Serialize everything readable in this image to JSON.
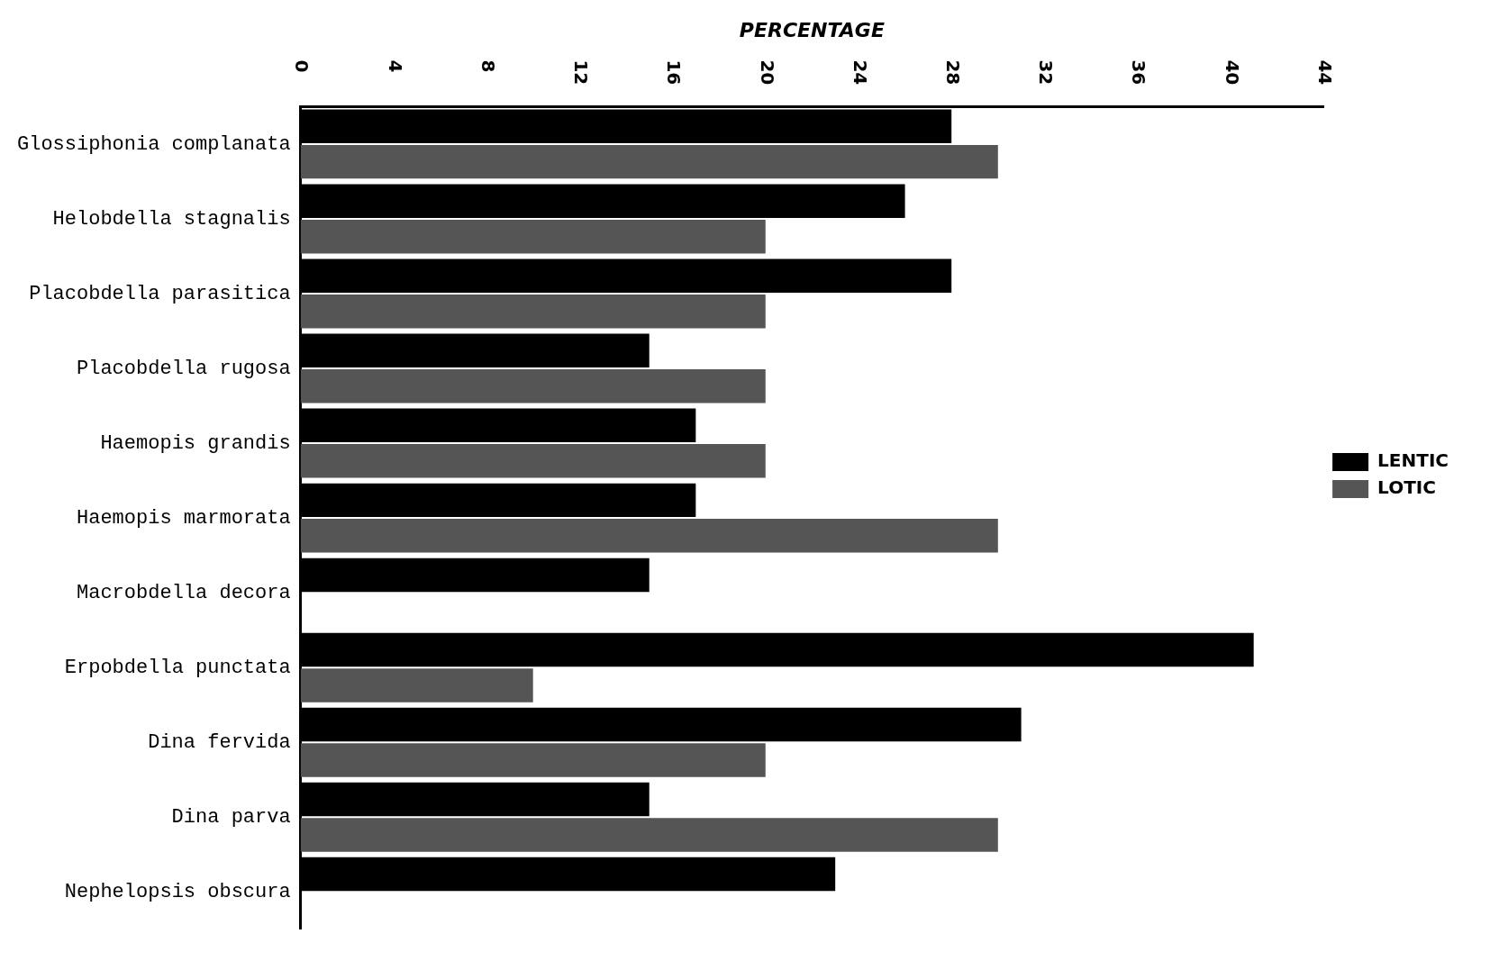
{
  "chart_data": {
    "type": "bar",
    "orientation": "horizontal",
    "xlabel": "PERCENTAGE",
    "categories": [
      "Glossiphonia complanata",
      "Helobdella stagnalis",
      "Placobdella parasitica",
      "Placobdella rugosa",
      "Haemopis grandis",
      "Haemopis marmorata",
      "Macrobdella decora",
      "Erpobdella punctata",
      "Dina fervida",
      "Dina parva",
      "Nephelopsis obscura"
    ],
    "series": [
      {
        "name": "LENTIC",
        "color": "#000000",
        "values": [
          28,
          26,
          28,
          15,
          17,
          17,
          15,
          41,
          31,
          15,
          23
        ]
      },
      {
        "name": "LOTIC",
        "color": "#555555",
        "values": [
          30,
          20,
          20,
          20,
          20,
          30,
          null,
          10,
          20,
          30,
          null
        ]
      }
    ],
    "xlim": [
      0,
      44
    ],
    "xticks": [
      0,
      4,
      8,
      12,
      16,
      20,
      24,
      28,
      32,
      36,
      40,
      44
    ],
    "grid": false,
    "legend": "right"
  }
}
